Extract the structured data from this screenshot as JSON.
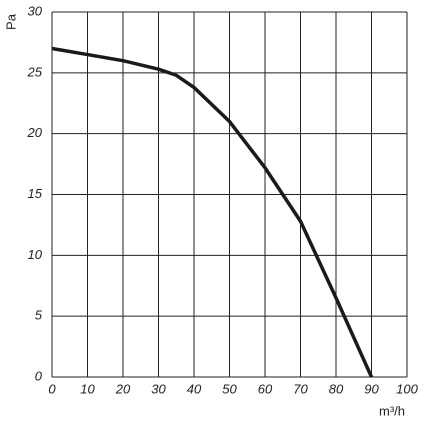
{
  "chart_data": {
    "type": "line",
    "x_label": "m³/h",
    "y_label": "Pa",
    "x": [
      0,
      10,
      20,
      30,
      35,
      40,
      50,
      60,
      70,
      80,
      90
    ],
    "series": [
      {
        "color": "#1a1a1a",
        "values": [
          27,
          26.5,
          26,
          25.3,
          24.8,
          23.8,
          21,
          17.2,
          12.8,
          6.5,
          0
        ]
      }
    ],
    "xlim": [
      0,
      100
    ],
    "xticks": [
      0,
      10,
      20,
      30,
      40,
      50,
      60,
      70,
      80,
      90,
      100
    ],
    "ylim": [
      0,
      30
    ],
    "yticks": [
      0,
      5,
      10,
      15,
      20,
      25,
      30
    ],
    "grid": true
  }
}
